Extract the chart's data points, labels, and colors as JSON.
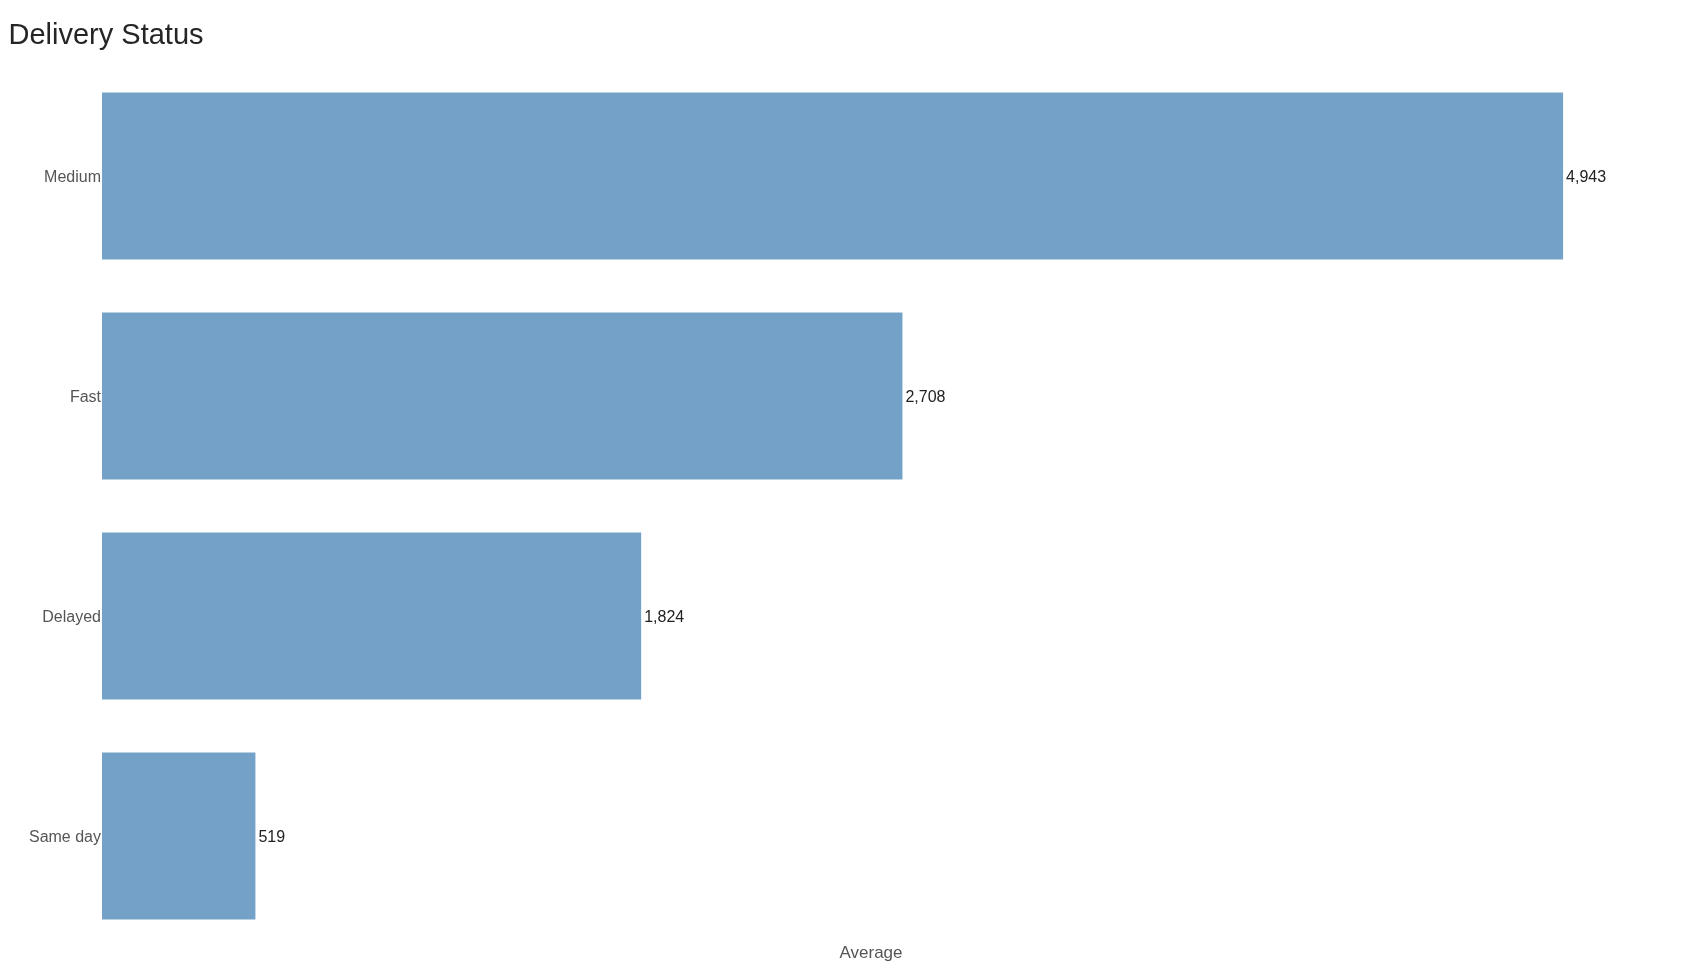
{
  "chart_data": {
    "type": "bar",
    "orientation": "horizontal",
    "title": "Delivery Status",
    "xlabel": "Average",
    "categories": [
      "Medium",
      "Fast",
      "Delayed",
      "Same day"
    ],
    "values": [
      4943,
      2708,
      1824,
      519
    ],
    "value_labels": [
      "4,943",
      "2,708",
      "1,824",
      "519"
    ],
    "color": "#74a1c7",
    "tick_labels": "y"
  }
}
